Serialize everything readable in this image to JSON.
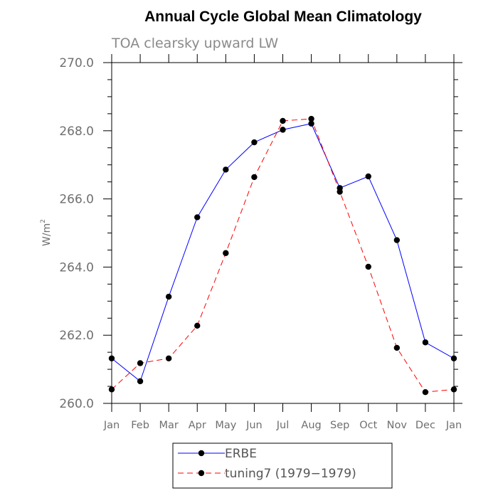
{
  "chart_data": {
    "type": "line",
    "title": "Annual Cycle Global Mean Climatology",
    "subtitle": "TOA clearsky upward LW",
    "ylabel": "W/m",
    "ylabel_superscript": "2",
    "ylim": [
      260.0,
      270.0
    ],
    "y_ticks": [
      "260.0",
      "262.0",
      "264.0",
      "266.0",
      "268.0",
      "270.0"
    ],
    "categories": [
      "Jan",
      "Feb",
      "Mar",
      "Apr",
      "May",
      "Jun",
      "Jul",
      "Aug",
      "Sep",
      "Oct",
      "Nov",
      "Dec",
      "Jan"
    ],
    "series": [
      {
        "name": "ERBE",
        "color": "#0000ff",
        "dash": "solid",
        "values": [
          261.32,
          260.65,
          263.13,
          265.46,
          266.86,
          267.66,
          268.03,
          268.21,
          266.32,
          266.66,
          264.79,
          261.79,
          261.32
        ]
      },
      {
        "name": "tuning7 (1979−1979)",
        "color": "#ff0000",
        "dash": "dashed",
        "values": [
          260.41,
          261.18,
          261.32,
          262.28,
          264.41,
          266.64,
          268.29,
          268.35,
          266.21,
          264.01,
          261.63,
          260.33,
          260.41
        ]
      }
    ],
    "grid": false,
    "legend_position": "bottom"
  }
}
